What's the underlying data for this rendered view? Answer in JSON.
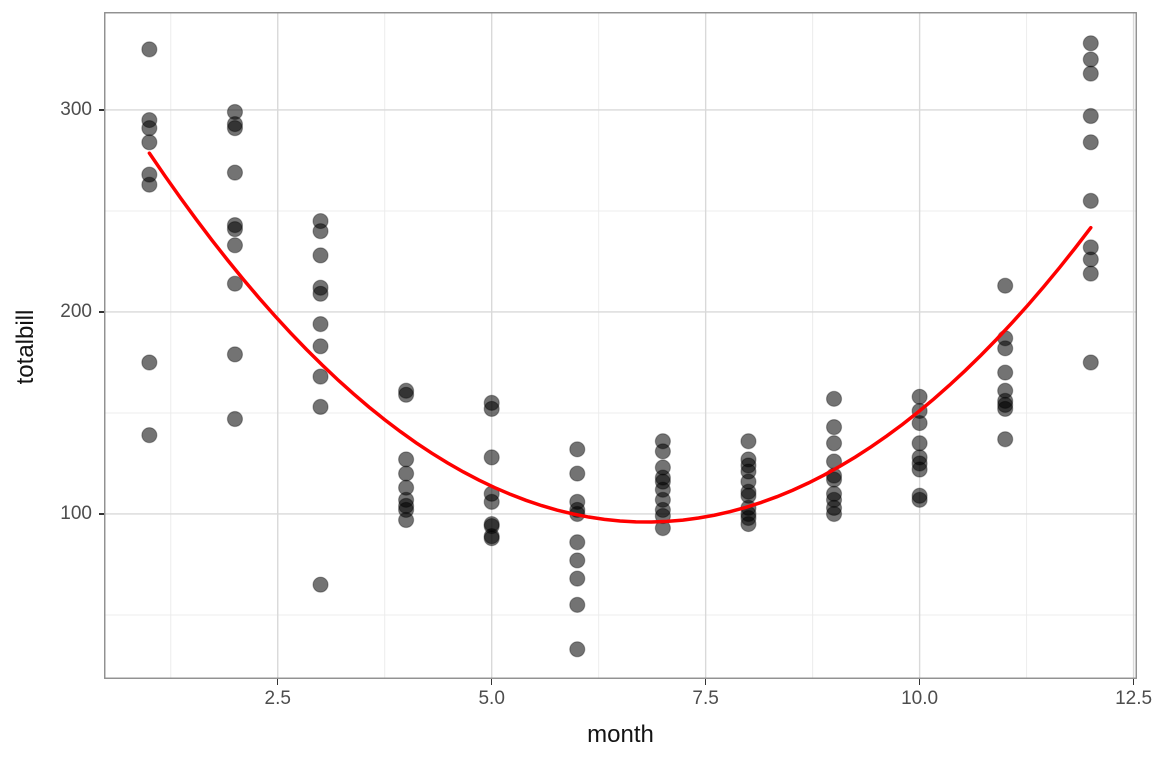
{
  "chart_data": {
    "type": "scatter",
    "title": "",
    "xlabel": "month",
    "ylabel": "totalbill",
    "xlim": [
      0.47,
      12.54
    ],
    "ylim": [
      18.3,
      348.5
    ],
    "x_major_ticks": [
      2.5,
      5.0,
      7.5,
      10.0,
      12.5
    ],
    "x_tick_labels": [
      "2.5",
      "5.0",
      "7.5",
      "10.0",
      "12.5"
    ],
    "x_minor_gridlines": [
      1.25,
      3.75,
      6.25,
      8.75,
      11.25
    ],
    "y_major_ticks": [
      100,
      200,
      300
    ],
    "y_tick_labels": [
      "100",
      "200",
      "300"
    ],
    "y_minor_gridlines": [
      50,
      150,
      250
    ],
    "grid": "major-and-minor",
    "legend_position": "none",
    "series": [
      {
        "name": "observations",
        "type": "scatter",
        "point_color": "#000000",
        "point_opacity": 0.55,
        "point_radius": 7.5,
        "points": [
          [
            1,
            330
          ],
          [
            1,
            295
          ],
          [
            1,
            291
          ],
          [
            1,
            284
          ],
          [
            1,
            268
          ],
          [
            1,
            263
          ],
          [
            1,
            175
          ],
          [
            1,
            139
          ],
          [
            2,
            299
          ],
          [
            2,
            293
          ],
          [
            2,
            291
          ],
          [
            2,
            269
          ],
          [
            2,
            243
          ],
          [
            2,
            241
          ],
          [
            2,
            233
          ],
          [
            2,
            214
          ],
          [
            2,
            179
          ],
          [
            2,
            147
          ],
          [
            3,
            245
          ],
          [
            3,
            240
          ],
          [
            3,
            228
          ],
          [
            3,
            212
          ],
          [
            3,
            209
          ],
          [
            3,
            194
          ],
          [
            3,
            183
          ],
          [
            3,
            168
          ],
          [
            3,
            153
          ],
          [
            3,
            65
          ],
          [
            4,
            161
          ],
          [
            4,
            159
          ],
          [
            4,
            127
          ],
          [
            4,
            120
          ],
          [
            4,
            113
          ],
          [
            4,
            107
          ],
          [
            4,
            104
          ],
          [
            4,
            102
          ],
          [
            4,
            97
          ],
          [
            5,
            155
          ],
          [
            5,
            152
          ],
          [
            5,
            128
          ],
          [
            5,
            110
          ],
          [
            5,
            106
          ],
          [
            5,
            95
          ],
          [
            5,
            94
          ],
          [
            5,
            89
          ],
          [
            5,
            88
          ],
          [
            6,
            132
          ],
          [
            6,
            120
          ],
          [
            6,
            106
          ],
          [
            6,
            102
          ],
          [
            6,
            100
          ],
          [
            6,
            86
          ],
          [
            6,
            77
          ],
          [
            6,
            68
          ],
          [
            6,
            55
          ],
          [
            6,
            33
          ],
          [
            7,
            136
          ],
          [
            7,
            131
          ],
          [
            7,
            123
          ],
          [
            7,
            118
          ],
          [
            7,
            116
          ],
          [
            7,
            112
          ],
          [
            7,
            107
          ],
          [
            7,
            102
          ],
          [
            7,
            99
          ],
          [
            7,
            93
          ],
          [
            8,
            136
          ],
          [
            8,
            127
          ],
          [
            8,
            124
          ],
          [
            8,
            121
          ],
          [
            8,
            116
          ],
          [
            8,
            111
          ],
          [
            8,
            109
          ],
          [
            8,
            103
          ],
          [
            8,
            100
          ],
          [
            8,
            98
          ],
          [
            8,
            95
          ],
          [
            9,
            157
          ],
          [
            9,
            143
          ],
          [
            9,
            135
          ],
          [
            9,
            126
          ],
          [
            9,
            119
          ],
          [
            9,
            117
          ],
          [
            9,
            110
          ],
          [
            9,
            107
          ],
          [
            9,
            103
          ],
          [
            9,
            100
          ],
          [
            10,
            158
          ],
          [
            10,
            151
          ],
          [
            10,
            145
          ],
          [
            10,
            135
          ],
          [
            10,
            128
          ],
          [
            10,
            125
          ],
          [
            10,
            122
          ],
          [
            10,
            109
          ],
          [
            10,
            107
          ],
          [
            11,
            213
          ],
          [
            11,
            187
          ],
          [
            11,
            182
          ],
          [
            11,
            170
          ],
          [
            11,
            161
          ],
          [
            11,
            156
          ],
          [
            11,
            154
          ],
          [
            11,
            152
          ],
          [
            11,
            137
          ],
          [
            12,
            333
          ],
          [
            12,
            325
          ],
          [
            12,
            318
          ],
          [
            12,
            297
          ],
          [
            12,
            284
          ],
          [
            12,
            255
          ],
          [
            12,
            232
          ],
          [
            12,
            226
          ],
          [
            12,
            219
          ],
          [
            12,
            175
          ]
        ]
      },
      {
        "name": "quadratic-fit",
        "type": "smooth-curve",
        "color": "#FF0000",
        "line_width": 3.5,
        "model": "totalbill = 5.41*(month - 6.81)^2 + 96",
        "quadratic": {
          "a": 5.41,
          "vertex_month": 6.81,
          "vertex_totalbill": 96
        },
        "month_range": [
          1,
          12
        ],
        "value_at_month_1": 278.5,
        "value_at_month_12": 241.5
      }
    ]
  },
  "style": {
    "background": "#FFFFFF",
    "panel_background": "#FFFFFF",
    "panel_border_color": "#8C8C8C",
    "grid_major_color": "#D9D9D9",
    "grid_minor_color": "#ECECEC",
    "tick_mark_color": "#333333",
    "tick_label_color": "#4D4D4D",
    "axis_title_color": "#141414",
    "curve_color": "#FF0000",
    "point_fill": "#000000"
  }
}
